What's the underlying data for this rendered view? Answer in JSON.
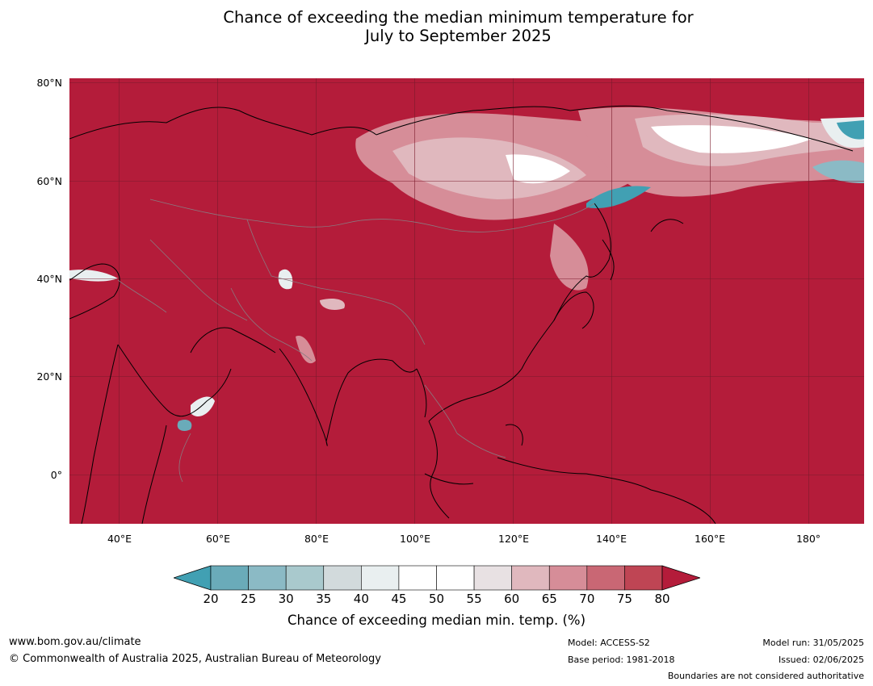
{
  "title_line1": "Chance of exceeding the median minimum temperature for",
  "title_line2": "July to September 2025",
  "y_ticks": [
    "80°N",
    "60°N",
    "40°N",
    "20°N",
    "0°"
  ],
  "x_ticks": [
    "40°E",
    "60°E",
    "80°E",
    "100°E",
    "120°E",
    "140°E",
    "160°E",
    "180°"
  ],
  "colorbar": {
    "labels": [
      "20",
      "25",
      "30",
      "35",
      "40",
      "45",
      "50",
      "55",
      "60",
      "65",
      "70",
      "75",
      "80"
    ],
    "colors": [
      "#41a0b3",
      "#6aabb9",
      "#8bbac5",
      "#a9c9cd",
      "#d2dadc",
      "#e9eff0",
      "#ffffff",
      "#ffffff",
      "#e8e1e3",
      "#e0b8be",
      "#d68d98",
      "#c96774",
      "#bf4554",
      "#b41c3a"
    ],
    "title": "Chance of exceeding median min. temp. (%)"
  },
  "footer": {
    "url": "www.bom.gov.au/climate",
    "copyright": "© Commonwealth of Australia 2025, Australian Bureau of Meteorology",
    "model": "Model: ACCESS-S2",
    "base_period": "Base period: 1981-2018",
    "model_run": "Model run: 31/05/2025",
    "issued": "Issued: 02/06/2025",
    "boundaries": "Boundaries are not considered authoritative"
  }
}
